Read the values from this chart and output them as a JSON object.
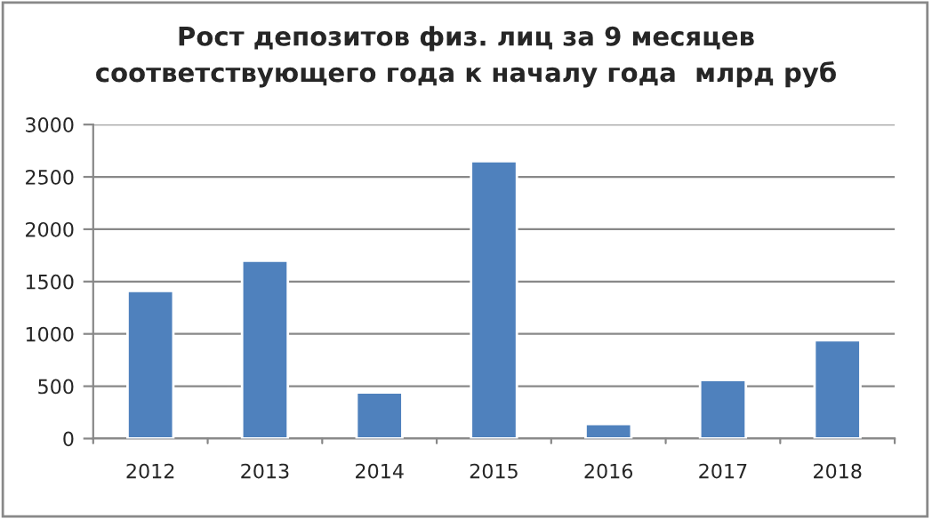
{
  "chart_data": {
    "type": "bar",
    "title": "Рост депозитов физ. лиц за 9 месяцев\nсоответствующего года к началу года  млрд руб",
    "categories": [
      "2012",
      "2013",
      "2014",
      "2015",
      "2016",
      "2017",
      "2018"
    ],
    "values": [
      1410,
      1700,
      440,
      2650,
      140,
      560,
      940
    ],
    "color": "#4f81bd",
    "ylim": [
      0,
      3000
    ],
    "yticks": [
      0,
      500,
      1000,
      1500,
      2000,
      2500,
      3000
    ],
    "grid": "y",
    "legend": false
  }
}
